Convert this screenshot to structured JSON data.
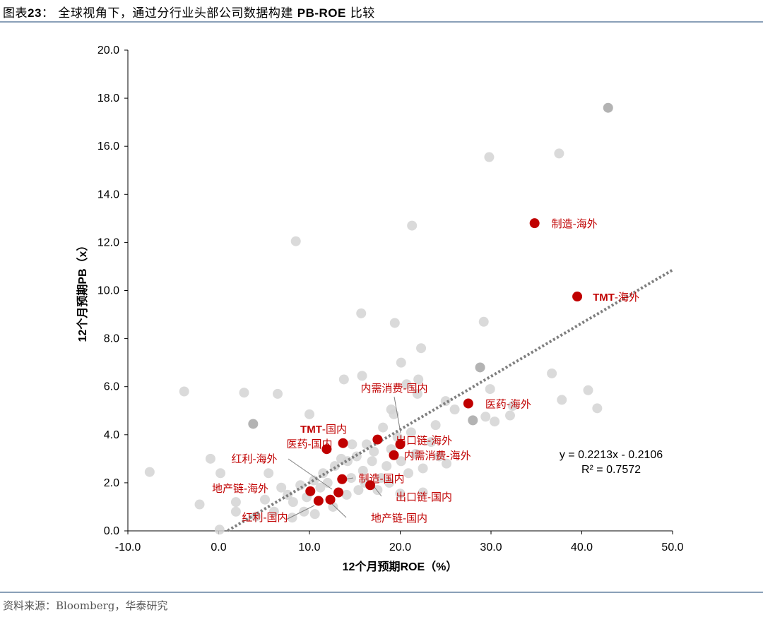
{
  "header": {
    "title_prefix": "图表",
    "title_num": "23",
    "title_main": "： 全球视角下，通过分行业头部公司数据构建 ",
    "title_bold": "PB-ROE",
    "title_suffix": " 比较"
  },
  "footer": {
    "source": "资料来源：Bloomberg，华泰研究"
  },
  "colors": {
    "highlight": "#c00000",
    "light_point": "#d3d3d3",
    "mid_point": "#a6a6a6",
    "trend": "#7f7f7f"
  },
  "chart_data": {
    "type": "scatter",
    "xlabel": "12个月预期ROE（%）",
    "ylabel": "12个月预期PB（x）",
    "xlim": [
      -10,
      50
    ],
    "ylim": [
      0,
      20
    ],
    "x_ticks": [
      "-10.0",
      "0.0",
      "10.0",
      "20.0",
      "30.0",
      "40.0",
      "50.0"
    ],
    "y_ticks": [
      "0.0",
      "2.0",
      "4.0",
      "6.0",
      "8.0",
      "10.0",
      "12.0",
      "14.0",
      "16.0",
      "18.0",
      "20.0"
    ],
    "trendline": {
      "slope": 0.2213,
      "intercept": -0.2106,
      "equation": "y = 0.2213x - 0.2106",
      "r2": "R² = 0.7572"
    },
    "highlighted": [
      {
        "name": "制造-海外",
        "x": 34.8,
        "y": 12.8
      },
      {
        "name": "TMT-海外",
        "x": 39.5,
        "y": 9.75
      },
      {
        "name": "医药-海外",
        "x": 27.5,
        "y": 5.3
      },
      {
        "name": "内需消费-国内",
        "x": 17.5,
        "y": 3.8
      },
      {
        "name": "出口链-海外",
        "x": 20.0,
        "y": 3.6
      },
      {
        "name": "内需消费-海外",
        "x": 19.3,
        "y": 3.15
      },
      {
        "name": "TMT-国内",
        "x": 13.7,
        "y": 3.65
      },
      {
        "name": "医药-国内",
        "x": 11.9,
        "y": 3.4
      },
      {
        "name": "制造-国内",
        "x": 13.6,
        "y": 2.15
      },
      {
        "name": "出口链-国内",
        "x": 16.7,
        "y": 1.9
      },
      {
        "name": "红利-海外",
        "x": 13.2,
        "y": 1.6
      },
      {
        "name": "地产链-海外",
        "x": 10.1,
        "y": 1.65
      },
      {
        "name": "红利-国内",
        "x": 11.0,
        "y": 1.25
      },
      {
        "name": "地产链-国内",
        "x": 12.3,
        "y": 1.3
      }
    ],
    "others": [
      [
        42.9,
        17.6,
        1
      ],
      [
        29.8,
        15.55,
        0
      ],
      [
        37.5,
        15.7,
        0
      ],
      [
        21.3,
        12.7,
        0
      ],
      [
        8.5,
        12.05,
        0
      ],
      [
        15.7,
        9.05,
        0
      ],
      [
        19.4,
        8.65,
        0
      ],
      [
        29.2,
        8.7,
        0
      ],
      [
        22.3,
        7.6,
        0
      ],
      [
        20.1,
        7.0,
        0
      ],
      [
        28.8,
        6.8,
        1
      ],
      [
        36.7,
        6.55,
        0
      ],
      [
        15.8,
        6.45,
        0
      ],
      [
        13.8,
        6.3,
        0
      ],
      [
        -3.8,
        5.8,
        0
      ],
      [
        2.8,
        5.75,
        0
      ],
      [
        6.5,
        5.7,
        0
      ],
      [
        29.9,
        5.9,
        0
      ],
      [
        40.7,
        5.85,
        0
      ],
      [
        41.7,
        5.1,
        0
      ],
      [
        37.8,
        5.45,
        0
      ],
      [
        32.4,
        5.2,
        0
      ],
      [
        25.0,
        5.4,
        0
      ],
      [
        26.0,
        5.05,
        0
      ],
      [
        21.9,
        5.7,
        0
      ],
      [
        20.7,
        6.1,
        0
      ],
      [
        22.0,
        6.3,
        0
      ],
      [
        19.0,
        5.05,
        0
      ],
      [
        19.3,
        4.85,
        0
      ],
      [
        10.0,
        4.85,
        0
      ],
      [
        28.0,
        4.6,
        1
      ],
      [
        29.4,
        4.75,
        0
      ],
      [
        30.4,
        4.55,
        0
      ],
      [
        32.1,
        4.8,
        0
      ],
      [
        3.8,
        4.45,
        1
      ],
      [
        -7.6,
        2.45,
        0
      ],
      [
        -0.9,
        3.0,
        0
      ],
      [
        0.2,
        2.4,
        0
      ],
      [
        -2.1,
        1.1,
        0
      ],
      [
        1.9,
        1.2,
        0
      ],
      [
        1.9,
        0.8,
        0
      ],
      [
        5.5,
        2.4,
        0
      ],
      [
        6.9,
        1.8,
        0
      ],
      [
        7.6,
        1.5,
        0
      ],
      [
        8.2,
        1.2,
        0
      ],
      [
        9.4,
        0.8,
        0
      ],
      [
        9.0,
        1.9,
        0
      ],
      [
        11.5,
        2.4,
        0
      ],
      [
        12.0,
        2.0,
        0
      ],
      [
        12.8,
        2.7,
        0
      ],
      [
        14.2,
        2.9,
        0
      ],
      [
        14.6,
        2.2,
        0
      ],
      [
        15.2,
        3.1,
        0
      ],
      [
        15.9,
        2.5,
        0
      ],
      [
        16.3,
        3.6,
        0
      ],
      [
        16.9,
        2.9,
        0
      ],
      [
        17.9,
        2.2,
        0
      ],
      [
        18.5,
        2.7,
        0
      ],
      [
        19.0,
        3.4,
        0
      ],
      [
        20.1,
        2.9,
        0
      ],
      [
        20.9,
        2.4,
        0
      ],
      [
        21.7,
        3.2,
        0
      ],
      [
        22.5,
        2.6,
        0
      ],
      [
        23.4,
        3.7,
        0
      ],
      [
        24.3,
        3.1,
        0
      ],
      [
        25.1,
        2.8,
        0
      ],
      [
        21.2,
        4.1,
        0
      ],
      [
        23.9,
        4.4,
        0
      ],
      [
        18.1,
        4.3,
        0
      ],
      [
        17.1,
        3.3,
        0
      ],
      [
        14.1,
        1.5,
        0
      ],
      [
        15.4,
        1.7,
        0
      ],
      [
        12.6,
        1.0,
        0
      ],
      [
        10.6,
        0.7,
        0
      ],
      [
        8.1,
        0.55,
        0
      ],
      [
        6.1,
        0.8,
        0
      ],
      [
        5.1,
        1.3,
        0
      ],
      [
        4.1,
        0.6,
        0
      ],
      [
        0.1,
        0.05,
        0
      ],
      [
        10.5,
        2.1,
        0
      ],
      [
        11.2,
        1.8,
        0
      ],
      [
        9.7,
        1.4,
        0
      ],
      [
        16.1,
        2.0,
        0
      ],
      [
        17.5,
        1.7,
        0
      ],
      [
        20.0,
        1.55,
        0
      ],
      [
        18.8,
        2.0,
        0
      ],
      [
        19.7,
        3.9,
        0
      ],
      [
        13.5,
        3.0,
        0
      ],
      [
        14.7,
        3.6,
        0
      ],
      [
        22.5,
        1.6,
        0
      ]
    ]
  }
}
